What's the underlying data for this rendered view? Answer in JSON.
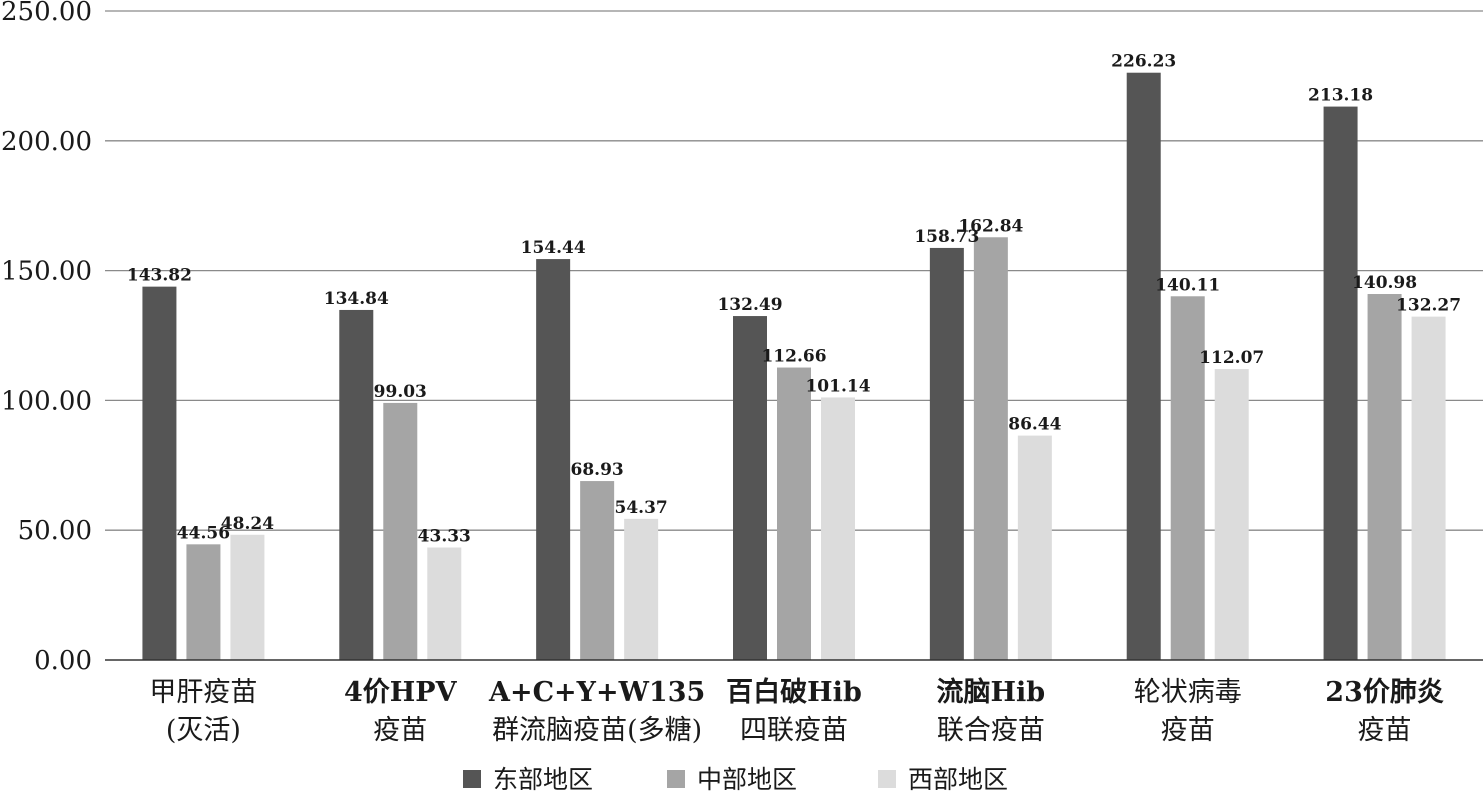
{
  "chart_data": {
    "type": "bar",
    "categories": [
      [
        "甲肝疫苗",
        "(灭活)"
      ],
      [
        "4价HPV",
        "疫苗"
      ],
      [
        "A+C+Y+W135",
        "群流脑疫苗(多糖)"
      ],
      [
        "百白破Hib",
        "四联疫苗"
      ],
      [
        "流脑Hib",
        "联合疫苗"
      ],
      [
        "轮状病毒",
        "疫苗"
      ],
      [
        "23价肺炎",
        "疫苗"
      ]
    ],
    "series": [
      {
        "name": "东部地区",
        "color": "#555555",
        "values": [
          143.82,
          134.84,
          154.44,
          132.49,
          158.73,
          226.23,
          213.18
        ]
      },
      {
        "name": "中部地区",
        "color": "#a5a5a5",
        "values": [
          44.56,
          99.03,
          68.93,
          112.66,
          162.84,
          140.11,
          140.98
        ]
      },
      {
        "name": "西部地区",
        "color": "#dcdcdc",
        "values": [
          48.24,
          43.33,
          54.37,
          101.14,
          86.44,
          112.07,
          132.27
        ]
      }
    ],
    "value_labels": [
      [
        "143.82",
        "134.84",
        "154.44",
        "132.49",
        "158.73",
        "226.23",
        "213.18"
      ],
      [
        "44.56",
        "99.03",
        "68.93",
        "112.66",
        "162.84",
        "140.11",
        "140.98"
      ],
      [
        "48.24",
        "43.33",
        "54.37",
        "101.14",
        "86.44",
        "112.07",
        "132.27"
      ]
    ],
    "y_ticks": [
      0,
      50,
      100,
      150,
      200,
      250
    ],
    "y_tick_labels": [
      "0.00",
      "50.00",
      "100.00",
      "150.00",
      "200.00",
      "250.00"
    ],
    "ylim": [
      0,
      250
    ],
    "grid": true,
    "legend_position": "bottom",
    "title": "",
    "xlabel": "",
    "ylabel": ""
  }
}
